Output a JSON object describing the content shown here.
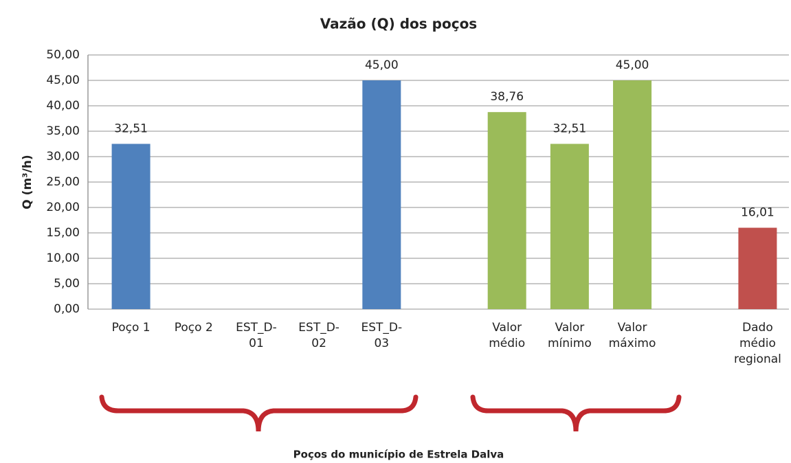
{
  "chart_data": {
    "type": "bar",
    "title": "Vazão (Q) dos poços",
    "y_label": "Q (m³/h)",
    "x_annotation": "Poços do município de Estrela Dalva",
    "categories": [
      "Poço 1",
      "Poço 2",
      "EST_D-01",
      "EST_D-02",
      "EST_D-03",
      null,
      "Valor médio",
      "Valor mínimo",
      "Valor máximo",
      null,
      "Dado médio regional"
    ],
    "values": [
      32.51,
      null,
      null,
      null,
      45.0,
      null,
      38.76,
      32.51,
      45.0,
      null,
      16.01
    ],
    "value_labels": [
      "32,51",
      null,
      null,
      null,
      "45,00",
      null,
      "38,76",
      "32,51",
      "45,00",
      null,
      "16,01"
    ],
    "colors": [
      "#4f81bd",
      null,
      null,
      null,
      "#4f81bd",
      null,
      "#9bbb59",
      "#9bbb59",
      "#9bbb59",
      null,
      "#c0504d"
    ],
    "ylim": [
      0,
      50
    ],
    "yticks": [
      {
        "value": 0,
        "label": "0,00"
      },
      {
        "value": 5,
        "label": "5,00"
      },
      {
        "value": 10,
        "label": "10,00"
      },
      {
        "value": 15,
        "label": "15,00"
      },
      {
        "value": 20,
        "label": "20,00"
      },
      {
        "value": 25,
        "label": "25,00"
      },
      {
        "value": 30,
        "label": "30,00"
      },
      {
        "value": 35,
        "label": "35,00"
      },
      {
        "value": 40,
        "label": "40,00"
      },
      {
        "value": 45,
        "label": "45,00"
      },
      {
        "value": 50,
        "label": "50,00"
      }
    ],
    "grid": true
  }
}
